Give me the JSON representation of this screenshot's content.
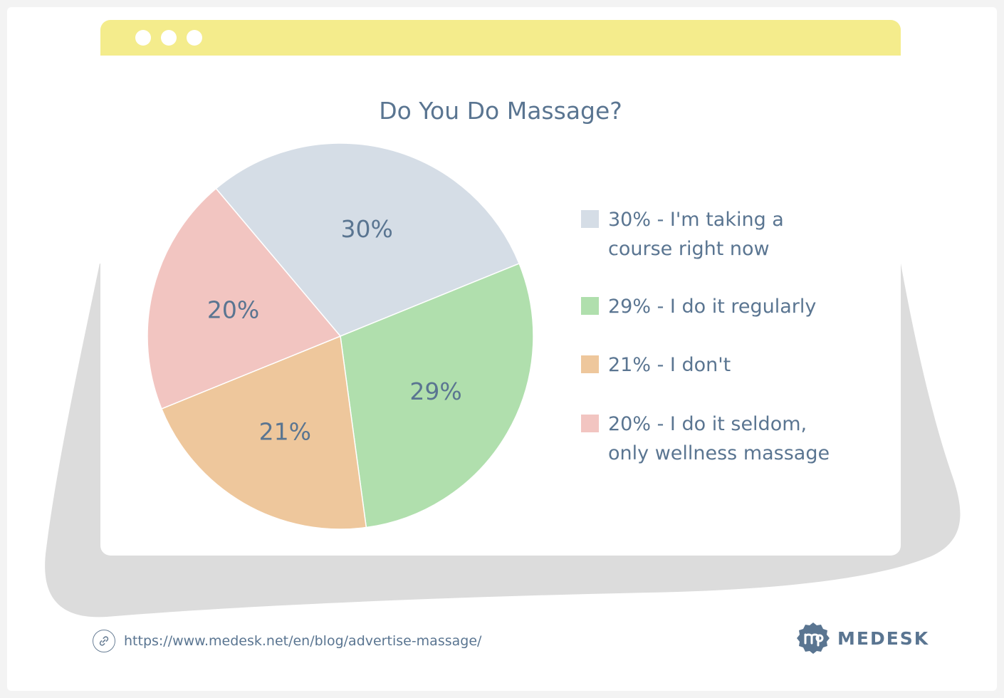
{
  "chart_data": {
    "type": "pie",
    "title": "Do You Do Massage?",
    "categories": [
      "I'm taking a course right now",
      "I do it regularly",
      "I don't",
      "I do it seldom, only wellness massage"
    ],
    "values": [
      30,
      29,
      21,
      20
    ],
    "slice_labels": [
      "30%",
      "29%",
      "21%",
      "20%"
    ],
    "colors": [
      "#d5dde6",
      "#b0dfad",
      "#eec79c",
      "#f2c5c1"
    ],
    "legend": {
      "placement": "right",
      "entries": [
        "30% - I'm taking a\ncourse right now",
        "29% - I do it regularly",
        "21% - I don't",
        "20% - I do it seldom,\nonly wellness massage"
      ]
    }
  },
  "footer": {
    "url": "https://www.medesk.net/en/blog/advertise-massage/",
    "link_icon": "link-icon"
  },
  "brand": {
    "name": "MEDESK",
    "logo_icon": "medesk-logo-icon"
  },
  "theme": {
    "titlebar": "#f4ec8c",
    "text": "#5a7591",
    "blob": "#dcdcdc"
  }
}
